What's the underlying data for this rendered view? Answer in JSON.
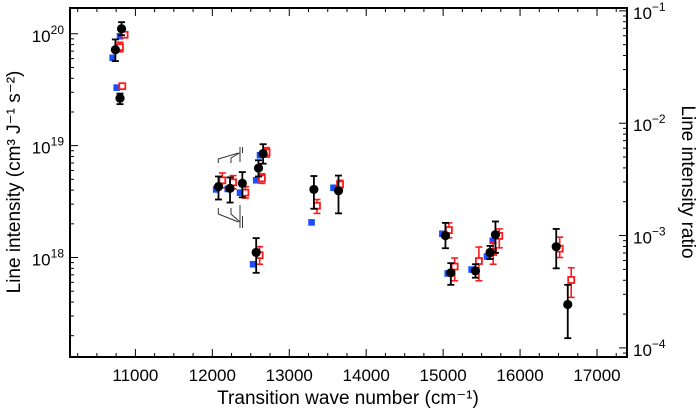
{
  "chart_data": {
    "type": "scatter",
    "title": "",
    "xlabel": "Transition wave number (cm⁻¹)",
    "ylabel": "Line intensity (cm³ J⁻¹ s⁻²)",
    "y2label": "Line intensity ratio",
    "xlim": [
      10150,
      17390
    ],
    "ylim": [
      1.29e+17,
      1.7e+20
    ],
    "y2lim": [
      8.3e-05,
      0.106
    ],
    "yscale": "log",
    "y2scale": "log",
    "grid": false,
    "legend": "none",
    "x_ticks": [
      "11000",
      "12000",
      "13000",
      "14000",
      "15000",
      "16000",
      "17000"
    ],
    "y_ticks": [
      {
        "base": "10",
        "exp": "20"
      },
      {
        "base": "10",
        "exp": "19"
      },
      {
        "base": "10",
        "exp": "18"
      }
    ],
    "y2_ticks": [
      {
        "base": "10",
        "exp": "−1"
      },
      {
        "base": "10",
        "exp": "−2"
      },
      {
        "base": "10",
        "exp": "−3"
      },
      {
        "base": "10",
        "exp": "−4"
      }
    ],
    "series": [
      {
        "marker": "filled-circle",
        "color": "#000000",
        "points": [
          {
            "x": 10820,
            "y": 1.11e+20,
            "lo": 9.7e+19,
            "hi": 1.27e+20
          },
          {
            "x": 10740,
            "y": 7.2e+19,
            "lo": 5.7e+19,
            "hi": 8.9e+19
          },
          {
            "x": 10800,
            "y": 2.65e+19,
            "lo": 2.35e+19,
            "hi": 2.92e+19
          },
          {
            "x": 12080,
            "y": 4.3e+18,
            "lo": 3.3e+18,
            "hi": 5.3e+18
          },
          {
            "x": 12230,
            "y": 4.15e+18,
            "lo": 3.1e+18,
            "hi": 5.2e+18
          },
          {
            "x": 12390,
            "y": 4.6e+18,
            "lo": 3.45e+18,
            "hi": 5.8e+18
          },
          {
            "x": 12600,
            "y": 6.3e+18,
            "lo": 5.3e+18,
            "hi": 7.4e+18
          },
          {
            "x": 12660,
            "y": 8.5e+18,
            "lo": 6.9e+18,
            "hi": 1.03e+19
          },
          {
            "x": 12570,
            "y": 1.11e+18,
            "lo": 7.3e+17,
            "hi": 1.49e+18
          },
          {
            "x": 13320,
            "y": 4.06e+18,
            "lo": 2.73e+18,
            "hi": 5.35e+18
          },
          {
            "x": 13640,
            "y": 3.95e+18,
            "lo": 2.48e+18,
            "hi": 5.4e+18
          },
          {
            "x": 15030,
            "y": 1.57e+18,
            "lo": 1.21e+18,
            "hi": 2.04e+18
          },
          {
            "x": 15100,
            "y": 7.3e+17,
            "lo": 5.7e+17,
            "hi": 8.9e+17
          },
          {
            "x": 15420,
            "y": 7.6e+17,
            "lo": 6.6e+17,
            "hi": 8.7e+17
          },
          {
            "x": 15610,
            "y": 1.11e+18,
            "lo": 9.7e+17,
            "hi": 1.27e+18
          },
          {
            "x": 15680,
            "y": 1.6e+18,
            "lo": 1.1e+18,
            "hi": 2.1e+18
          },
          {
            "x": 16470,
            "y": 1.25e+18,
            "lo": 8e+17,
            "hi": 1.8e+18
          },
          {
            "x": 16620,
            "y": 3.8e+17,
            "lo": 1.9e+17,
            "hi": 5.7e+17
          }
        ]
      },
      {
        "marker": "filled-square",
        "color": "#1a4fff",
        "points": [
          {
            "x": 10705,
            "y": 6.1e+19
          },
          {
            "x": 10800,
            "y": 9.5e+19
          },
          {
            "x": 10757,
            "y": 3.3e+19
          },
          {
            "x": 12050,
            "y": 4.06e+18
          },
          {
            "x": 12200,
            "y": 4.1e+18
          },
          {
            "x": 12360,
            "y": 3.8e+18
          },
          {
            "x": 12570,
            "y": 4.9e+18
          },
          {
            "x": 12620,
            "y": 8.2e+18
          },
          {
            "x": 12530,
            "y": 8.7e+17
          },
          {
            "x": 13290,
            "y": 2.06e+18
          },
          {
            "x": 13575,
            "y": 4.2e+18
          },
          {
            "x": 14990,
            "y": 1.63e+18
          },
          {
            "x": 15060,
            "y": 7.2e+17
          },
          {
            "x": 15370,
            "y": 7.8e+17
          },
          {
            "x": 15570,
            "y": 1.02e+18
          },
          {
            "x": 15645,
            "y": 1.41e+18
          }
        ]
      },
      {
        "marker": "open-square",
        "color": "#ff1a1a",
        "points": [
          {
            "x": 10860,
            "y": 9.8e+19,
            "lo": 9.3e+19,
            "hi": 1.03e+20
          },
          {
            "x": 10800,
            "y": 7.6e+19,
            "lo": 6.9e+19,
            "hi": 8.4e+19
          },
          {
            "x": 10830,
            "y": 3.4e+19,
            "lo": 3.2e+19,
            "hi": 3.6e+19
          },
          {
            "x": 12130,
            "y": 4.9e+18,
            "lo": 4.2e+18,
            "hi": 5.7e+18
          },
          {
            "x": 12270,
            "y": 4.7e+18,
            "lo": 4.1e+18,
            "hi": 5.4e+18
          },
          {
            "x": 12430,
            "y": 3.8e+18,
            "lo": 3.4e+18,
            "hi": 4.3e+18
          },
          {
            "x": 12645,
            "y": 5.1e+18,
            "lo": 4.6e+18,
            "hi": 5.6e+18
          },
          {
            "x": 12705,
            "y": 8.7e+18,
            "lo": 7.9e+18,
            "hi": 9.6e+18
          },
          {
            "x": 12615,
            "y": 1.05e+18,
            "lo": 8.7e+17,
            "hi": 1.25e+18
          },
          {
            "x": 13360,
            "y": 2.9e+18,
            "lo": 2.48e+18,
            "hi": 3.3e+18
          },
          {
            "x": 13660,
            "y": 4.5e+18,
            "lo": 4.2e+18,
            "hi": 4.9e+18
          },
          {
            "x": 15075,
            "y": 1.76e+18,
            "lo": 1.5e+18,
            "hi": 2.04e+18
          },
          {
            "x": 15150,
            "y": 8.3e+17,
            "lo": 6.2e+17,
            "hi": 9.9e+17
          },
          {
            "x": 15465,
            "y": 9.3e+17,
            "lo": 6.2e+17,
            "hi": 1.24e+18
          },
          {
            "x": 15650,
            "y": 1.12e+18,
            "lo": 8.7e+17,
            "hi": 1.35e+18
          },
          {
            "x": 15730,
            "y": 1.56e+18,
            "lo": 1.22e+18,
            "hi": 1.8e+18
          },
          {
            "x": 16515,
            "y": 1.2e+18,
            "lo": 1e+18,
            "hi": 1.52e+18
          },
          {
            "x": 16665,
            "y": 6.3e+17,
            "lo": 4.4e+17,
            "hi": 8.1e+17
          }
        ]
      }
    ]
  }
}
